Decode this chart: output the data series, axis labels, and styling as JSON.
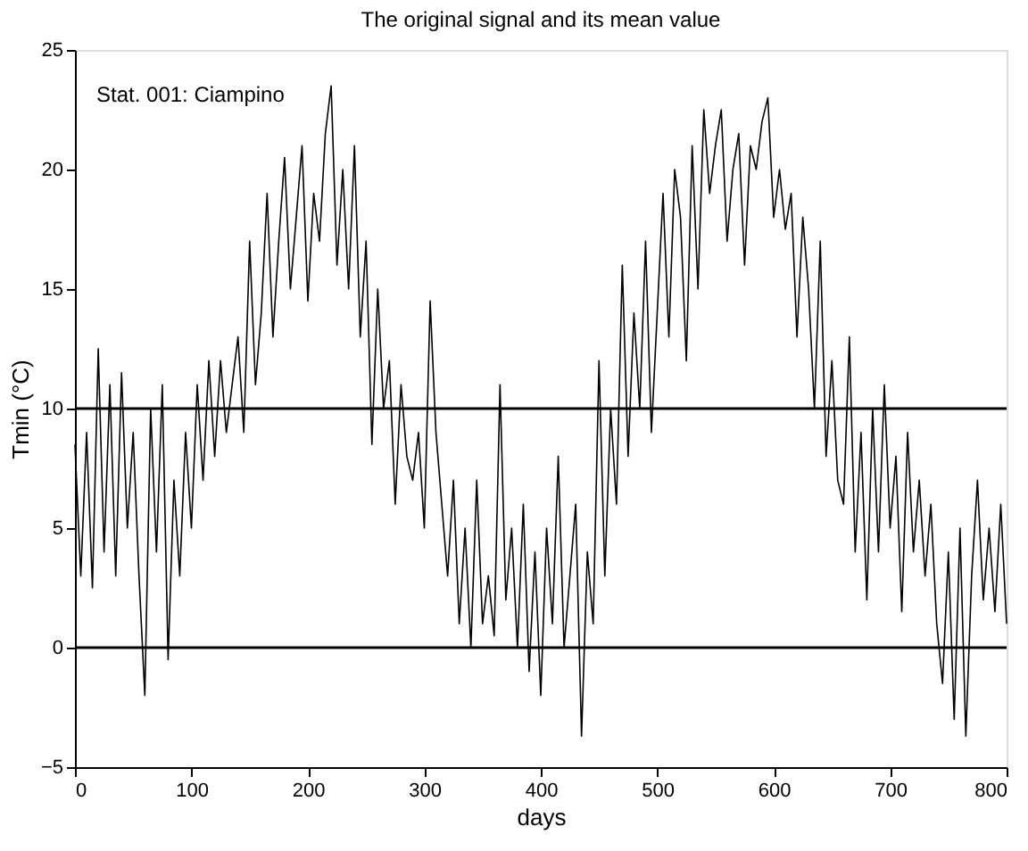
{
  "chart_data": {
    "type": "line",
    "title": "The original signal and its mean value",
    "xlabel": "days",
    "ylabel": "Tmin (°C)",
    "x": [
      0,
      5,
      10,
      15,
      20,
      25,
      30,
      35,
      40,
      45,
      50,
      55,
      60,
      65,
      70,
      75,
      80,
      85,
      90,
      95,
      100,
      105,
      110,
      115,
      120,
      125,
      130,
      135,
      140,
      145,
      150,
      155,
      160,
      165,
      170,
      175,
      180,
      185,
      190,
      195,
      200,
      205,
      210,
      215,
      220,
      225,
      230,
      235,
      240,
      245,
      250,
      255,
      260,
      265,
      270,
      275,
      280,
      285,
      290,
      295,
      300,
      305,
      310,
      315,
      320,
      325,
      330,
      335,
      340,
      345,
      350,
      355,
      360,
      365,
      370,
      375,
      380,
      385,
      390,
      395,
      400,
      405,
      410,
      415,
      420,
      425,
      430,
      435,
      440,
      445,
      450,
      455,
      460,
      465,
      470,
      475,
      480,
      485,
      490,
      495,
      500,
      505,
      510,
      515,
      520,
      525,
      530,
      535,
      540,
      545,
      550,
      555,
      560,
      565,
      570,
      575,
      580,
      585,
      590,
      595,
      600,
      605,
      610,
      615,
      620,
      625,
      630,
      635,
      640,
      645,
      650,
      655,
      660,
      665,
      670,
      675,
      680,
      685,
      690,
      695,
      700,
      705,
      710,
      715,
      720,
      725,
      730,
      735,
      740,
      745,
      750,
      755,
      760,
      765,
      770,
      775,
      780,
      785,
      790,
      795,
      800
    ],
    "series": [
      {
        "color": "#000000",
        "values": [
          8.5,
          3,
          9,
          2.5,
          12.5,
          4,
          11,
          3,
          11.5,
          5,
          9,
          3,
          -2,
          10,
          4,
          11,
          -0.5,
          7,
          3,
          9,
          5,
          11,
          7,
          12,
          8,
          12,
          9,
          11,
          13,
          9,
          17,
          11,
          14,
          19,
          13,
          17,
          20.5,
          15,
          18,
          21,
          14.5,
          19,
          17,
          21.5,
          23.5,
          16,
          20,
          15,
          21,
          13,
          17,
          8.5,
          15,
          10,
          12,
          6,
          11,
          8,
          7,
          9,
          5,
          14.5,
          9,
          6,
          3,
          7,
          1,
          5,
          0,
          7,
          1,
          3,
          0.5,
          11,
          2,
          5,
          0,
          6,
          -1,
          4,
          -2,
          5,
          1,
          8,
          0,
          3,
          6,
          -3.7,
          4,
          1,
          12,
          3,
          10,
          6,
          16,
          8,
          14,
          10,
          17,
          9,
          14,
          19,
          13,
          20,
          18,
          12,
          21,
          15,
          22.5,
          19,
          21,
          22.5,
          17,
          20,
          21.5,
          16,
          21,
          20,
          22,
          23,
          18,
          20,
          17.5,
          19,
          13,
          18,
          15,
          10,
          17,
          8,
          12,
          7,
          6,
          13,
          4,
          9,
          2,
          10,
          4,
          11,
          5,
          8,
          1.5,
          9,
          4,
          7,
          3,
          6,
          1,
          -1.5,
          4,
          -3,
          5,
          -3.7,
          3,
          7,
          2,
          5,
          1.5,
          6,
          1
        ]
      }
    ],
    "xlim": [
      0,
      800
    ],
    "xticks": [
      0,
      100,
      200,
      300,
      400,
      500,
      600,
      700,
      800
    ],
    "ylim": [
      -5,
      25
    ],
    "yticks": [
      -5,
      0,
      5,
      10,
      15,
      20,
      25
    ],
    "ref_lines": [
      {
        "axis": "y",
        "value": 10,
        "color": "#000000"
      },
      {
        "axis": "y",
        "value": 0,
        "color": "#000000"
      }
    ],
    "annotations": [
      "Stat. 001: Ciampino"
    ],
    "grid": false
  }
}
